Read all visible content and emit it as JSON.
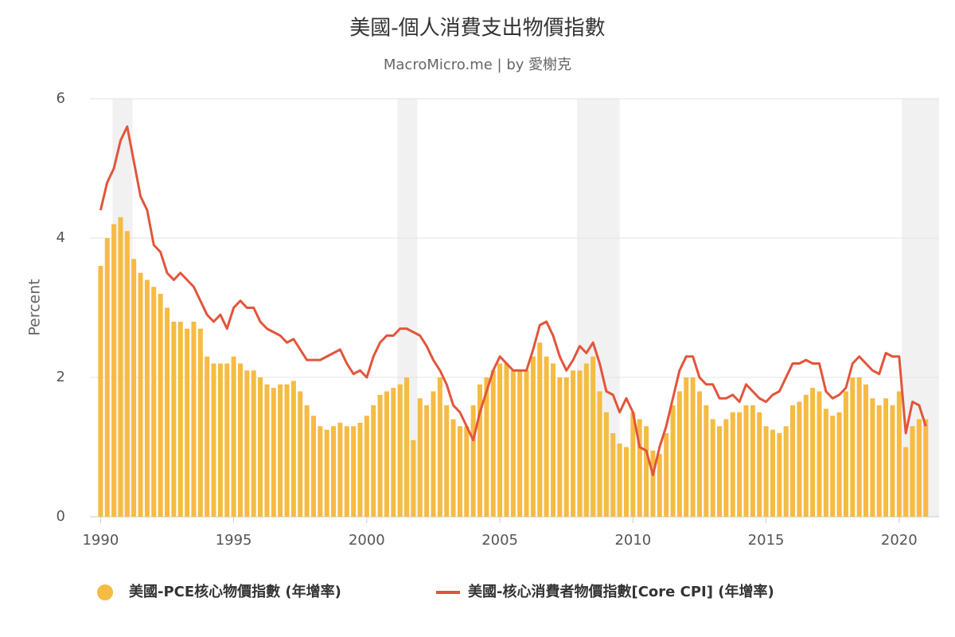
{
  "chart_data": {
    "type": "bar-line",
    "title": "美國-個人消費支出物價指數",
    "subtitle": "MacroMicro.me | by 愛榭克",
    "y_label": "Percent",
    "xlim": [
      1989.6,
      2021.5
    ],
    "xticks": [
      1990,
      1995,
      2000,
      2005,
      2010,
      2015,
      2020
    ],
    "ylim": [
      0,
      6
    ],
    "yticks": [
      0,
      2,
      4,
      6
    ],
    "grid": true,
    "legend": "bottom",
    "shaded_ranges": [
      [
        1990.45,
        1991.2
      ],
      [
        2001.15,
        2001.9
      ],
      [
        2007.9,
        2009.5
      ],
      [
        2020.1,
        2021.5
      ]
    ],
    "x": [
      1990,
      1990.25,
      1990.5,
      1990.75,
      1991,
      1991.25,
      1991.5,
      1991.75,
      1992,
      1992.25,
      1992.5,
      1992.75,
      1993,
      1993.25,
      1993.5,
      1993.75,
      1994,
      1994.25,
      1994.5,
      1994.75,
      1995,
      1995.25,
      1995.5,
      1995.75,
      1996,
      1996.25,
      1996.5,
      1996.75,
      1997,
      1997.25,
      1997.5,
      1997.75,
      1998,
      1998.25,
      1998.5,
      1998.75,
      1999,
      1999.25,
      1999.5,
      1999.75,
      2000,
      2000.25,
      2000.5,
      2000.75,
      2001,
      2001.25,
      2001.5,
      2001.75,
      2002,
      2002.25,
      2002.5,
      2002.75,
      2003,
      2003.25,
      2003.5,
      2003.75,
      2004,
      2004.25,
      2004.5,
      2004.75,
      2005,
      2005.25,
      2005.5,
      2005.75,
      2006,
      2006.25,
      2006.5,
      2006.75,
      2007,
      2007.25,
      2007.5,
      2007.75,
      2008,
      2008.25,
      2008.5,
      2008.75,
      2009,
      2009.25,
      2009.5,
      2009.75,
      2010,
      2010.25,
      2010.5,
      2010.75,
      2011,
      2011.25,
      2011.5,
      2011.75,
      2012,
      2012.25,
      2012.5,
      2012.75,
      2013,
      2013.25,
      2013.5,
      2013.75,
      2014,
      2014.25,
      2014.5,
      2014.75,
      2015,
      2015.25,
      2015.5,
      2015.75,
      2016,
      2016.25,
      2016.5,
      2016.75,
      2017,
      2017.25,
      2017.5,
      2017.75,
      2018,
      2018.25,
      2018.5,
      2018.75,
      2019,
      2019.25,
      2019.5,
      2019.75,
      2020,
      2020.25,
      2020.5,
      2020.75,
      2021
    ],
    "series": [
      {
        "name": "美國-PCE核心物價指數 (年增率)",
        "color": "#f5bb43",
        "kind": "bar",
        "values": [
          3.6,
          4.0,
          4.2,
          4.3,
          4.1,
          3.7,
          3.5,
          3.4,
          3.3,
          3.2,
          3.0,
          2.8,
          2.8,
          2.7,
          2.8,
          2.7,
          2.3,
          2.2,
          2.2,
          2.2,
          2.3,
          2.2,
          2.1,
          2.1,
          2.0,
          1.9,
          1.85,
          1.9,
          1.9,
          1.95,
          1.8,
          1.6,
          1.45,
          1.3,
          1.25,
          1.3,
          1.35,
          1.3,
          1.3,
          1.35,
          1.45,
          1.6,
          1.75,
          1.8,
          1.85,
          1.9,
          2.0,
          1.1,
          1.7,
          1.6,
          1.8,
          2.0,
          1.6,
          1.4,
          1.3,
          1.3,
          1.6,
          1.9,
          2.0,
          2.1,
          2.2,
          2.2,
          2.1,
          2.1,
          2.1,
          2.3,
          2.5,
          2.3,
          2.2,
          2.0,
          2.0,
          2.1,
          2.1,
          2.2,
          2.3,
          1.8,
          1.5,
          1.2,
          1.05,
          1.0,
          1.5,
          1.4,
          1.3,
          0.95,
          0.9,
          1.2,
          1.6,
          1.8,
          2.0,
          2.0,
          1.8,
          1.6,
          1.4,
          1.3,
          1.4,
          1.5,
          1.5,
          1.6,
          1.6,
          1.5,
          1.3,
          1.25,
          1.2,
          1.3,
          1.6,
          1.65,
          1.75,
          1.85,
          1.8,
          1.55,
          1.45,
          1.5,
          1.8,
          2.0,
          2.0,
          1.9,
          1.7,
          1.6,
          1.7,
          1.6,
          1.8,
          1.0,
          1.3,
          1.4,
          1.4
        ]
      },
      {
        "name": "美國-核心消費者物價指數[Core CPI] (年增率)",
        "color": "#e2553b",
        "kind": "line",
        "values": [
          4.4,
          4.8,
          5.0,
          5.4,
          5.6,
          5.1,
          4.6,
          4.4,
          3.9,
          3.8,
          3.5,
          3.4,
          3.5,
          3.4,
          3.3,
          3.1,
          2.9,
          2.8,
          2.9,
          2.7,
          3.0,
          3.1,
          3.0,
          3.0,
          2.8,
          2.7,
          2.65,
          2.6,
          2.5,
          2.55,
          2.4,
          2.25,
          2.25,
          2.25,
          2.3,
          2.35,
          2.4,
          2.2,
          2.05,
          2.1,
          2.0,
          2.3,
          2.5,
          2.6,
          2.6,
          2.7,
          2.7,
          2.65,
          2.6,
          2.45,
          2.25,
          2.1,
          1.9,
          1.6,
          1.5,
          1.3,
          1.1,
          1.5,
          1.8,
          2.1,
          2.3,
          2.2,
          2.1,
          2.1,
          2.1,
          2.4,
          2.75,
          2.8,
          2.6,
          2.3,
          2.1,
          2.25,
          2.45,
          2.35,
          2.5,
          2.2,
          1.8,
          1.75,
          1.5,
          1.7,
          1.5,
          1.0,
          0.95,
          0.6,
          1.0,
          1.3,
          1.7,
          2.1,
          2.3,
          2.3,
          2.0,
          1.9,
          1.9,
          1.7,
          1.7,
          1.75,
          1.65,
          1.9,
          1.8,
          1.7,
          1.65,
          1.75,
          1.8,
          2.0,
          2.2,
          2.2,
          2.25,
          2.2,
          2.2,
          1.8,
          1.7,
          1.75,
          1.85,
          2.2,
          2.3,
          2.2,
          2.1,
          2.05,
          2.35,
          2.3,
          2.3,
          1.2,
          1.65,
          1.6,
          1.3
        ]
      }
    ]
  }
}
